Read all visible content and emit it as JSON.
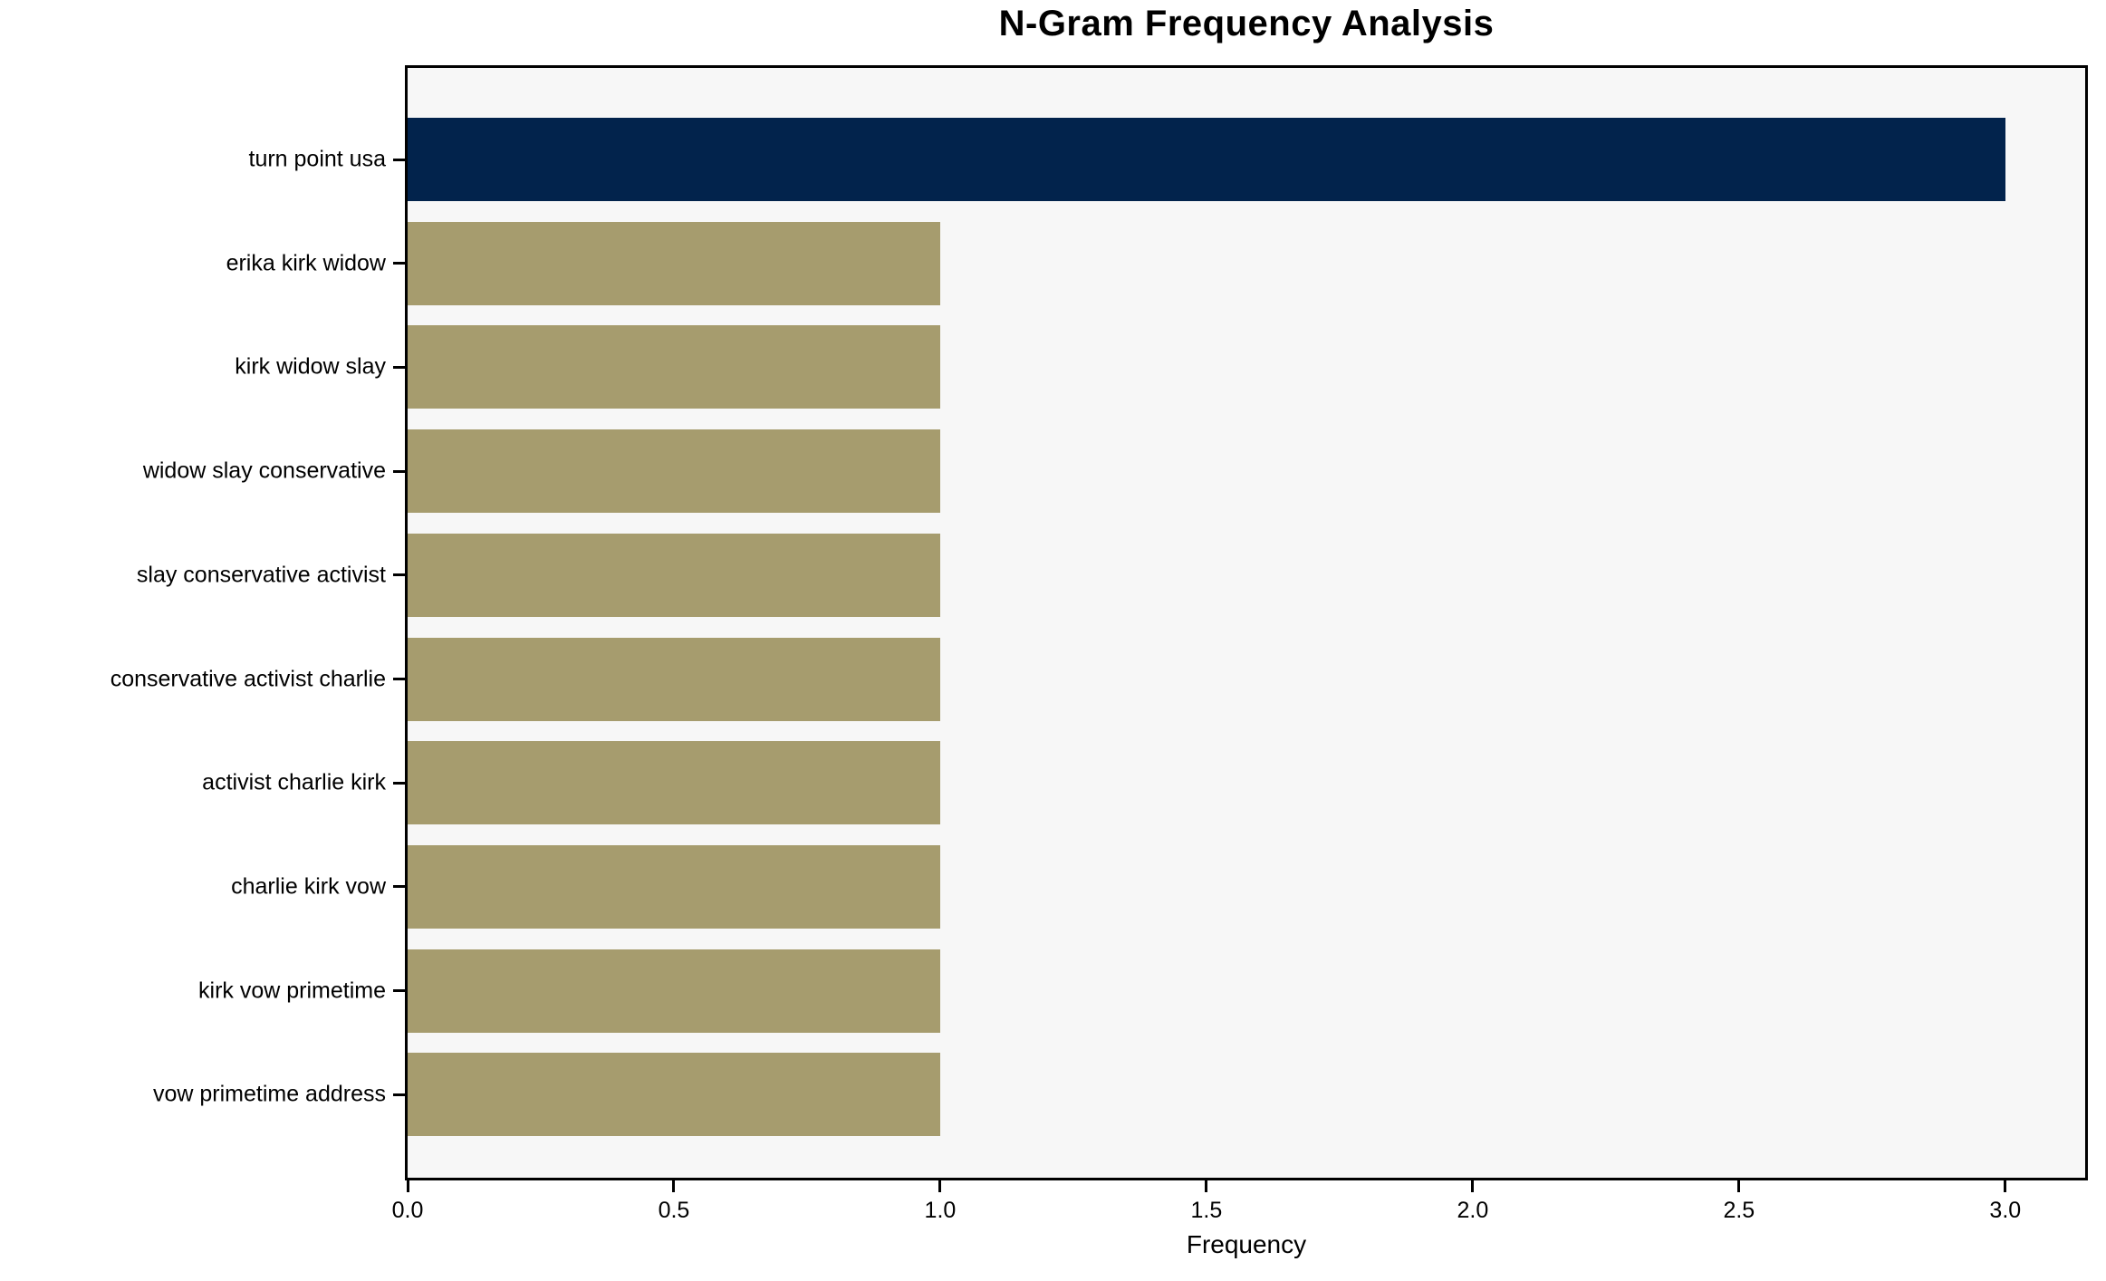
{
  "title": "N-Gram Frequency Analysis",
  "chart_data": {
    "type": "bar",
    "orientation": "horizontal",
    "title": "N-Gram Frequency Analysis",
    "xlabel": "Frequency",
    "ylabel": "",
    "categories": [
      "turn point usa",
      "erika kirk widow",
      "kirk widow slay",
      "widow slay conservative",
      "slay conservative activist",
      "conservative activist charlie",
      "activist charlie kirk",
      "charlie kirk vow",
      "kirk vow primetime",
      "vow primetime address"
    ],
    "values": [
      3,
      1,
      1,
      1,
      1,
      1,
      1,
      1,
      1,
      1
    ],
    "xticks": [
      0.0,
      0.5,
      1.0,
      1.5,
      2.0,
      2.5,
      3.0
    ],
    "xtick_labels": [
      "0.0",
      "0.5",
      "1.0",
      "1.5",
      "2.0",
      "2.5",
      "3.0"
    ],
    "xlim": [
      0,
      3.15
    ],
    "grid": false,
    "legend_position": "none",
    "bar_colors": [
      "#02234C",
      "#A69C6E",
      "#A69C6E",
      "#A69C6E",
      "#A69C6E",
      "#A69C6E",
      "#A69C6E",
      "#A69C6E",
      "#A69C6E",
      "#A69C6E"
    ],
    "colors": {
      "highlight_bar": "#02234C",
      "default_bar": "#A69C6E",
      "plot_background": "#F7F7F7",
      "figure_background": "#FFFFFF",
      "spine": "#000000",
      "text": "#000000"
    }
  }
}
